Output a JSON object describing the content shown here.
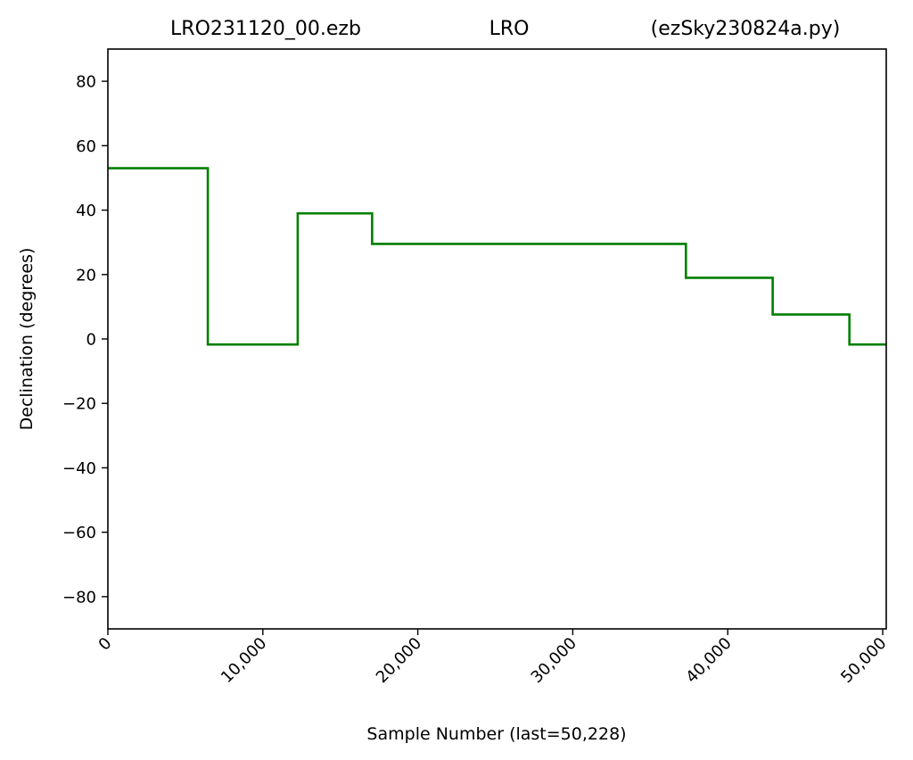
{
  "chart_data": {
    "type": "line",
    "title_left": "LRO231120_00.ezb",
    "title_center": "LRO",
    "title_right": "(ezSky230824a.py)",
    "xlabel": "Sample Number (last=50,228)",
    "ylabel": "Declination (degrees)",
    "xlim": [
      0,
      50228
    ],
    "ylim": [
      -90,
      90
    ],
    "x_ticks": [
      0,
      10000,
      20000,
      30000,
      40000,
      50000
    ],
    "x_tick_labels": [
      "0",
      "10,000",
      "20,000",
      "30,000",
      "40,000",
      "50,000"
    ],
    "y_ticks": [
      80,
      60,
      40,
      20,
      0,
      -20,
      -40,
      -60,
      -80
    ],
    "y_tick_labels": [
      "80",
      "60",
      "40",
      "20",
      "0",
      "−20",
      "−40",
      "−60",
      "−80"
    ],
    "grid": false,
    "line_color": "#007f00",
    "series": [
      {
        "x": [
          0,
          6450,
          6450,
          12250,
          12250,
          17050,
          17050,
          37300,
          37300,
          42900,
          42900,
          47850,
          47850,
          50228
        ],
        "y": [
          53,
          53,
          -1.7,
          -1.7,
          39,
          39,
          29.5,
          29.5,
          19,
          19,
          7.6,
          7.6,
          -1.7,
          -1.7
        ]
      }
    ]
  }
}
